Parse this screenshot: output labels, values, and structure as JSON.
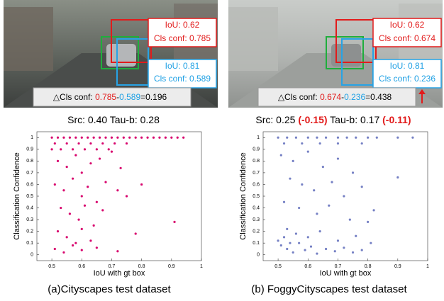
{
  "photos": [
    {
      "red_iou": "IoU: 0.62",
      "red_conf": "Cls conf: 0.785",
      "blue_iou": "IoU: 0.81",
      "blue_conf": "Cls conf: 0.589",
      "delta": [
        "△Cls conf: ",
        "0.785",
        "-",
        "0.589",
        "=0.196"
      ]
    },
    {
      "red_iou": "IoU: 0.62",
      "red_conf": "Cls conf: 0.674",
      "blue_iou": "IoU: 0.81",
      "blue_conf": "Cls conf: 0.236",
      "delta": [
        "△Cls conf: ",
        "0.674",
        "-",
        "0.236",
        "=0.438"
      ]
    }
  ],
  "chart_data": [
    {
      "type": "scatter",
      "title_parts": [
        "Src: 0.40 Tau-b: 0.28"
      ],
      "caption": "(a)Cityscapes test dataset",
      "xlabel": "IoU with gt box",
      "ylabel": "Classification Confidence",
      "color": "#d8066e",
      "x": [
        0.5,
        0.52,
        0.54,
        0.56,
        0.58,
        0.6,
        0.62,
        0.64,
        0.66,
        0.68,
        0.7,
        0.72,
        0.74,
        0.76,
        0.78,
        0.8,
        0.82,
        0.84,
        0.86,
        0.88,
        0.9,
        0.92,
        0.94,
        0.51,
        0.55,
        0.59,
        0.63,
        0.67,
        0.71,
        0.75,
        0.5,
        0.53,
        0.57,
        0.61,
        0.65,
        0.69,
        0.52,
        0.55,
        0.58,
        0.6,
        0.63,
        0.66,
        0.7,
        0.73,
        0.51,
        0.54,
        0.57,
        0.6,
        0.62,
        0.65,
        0.68,
        0.72,
        0.53,
        0.56,
        0.59,
        0.61,
        0.64,
        0.67,
        0.52,
        0.55,
        0.58,
        0.6,
        0.63,
        0.51,
        0.54,
        0.57,
        0.6,
        0.65,
        0.72,
        0.78,
        0.91,
        0.75,
        0.8
      ],
      "values": [
        1,
        1,
        1,
        1,
        1,
        1,
        1,
        1,
        1,
        1,
        1,
        1,
        1,
        1,
        1,
        1,
        1,
        1,
        1,
        1,
        1,
        1,
        1,
        0.95,
        0.95,
        0.95,
        0.95,
        0.95,
        0.95,
        0.95,
        0.9,
        0.9,
        0.9,
        0.9,
        0.9,
        0.9,
        0.8,
        0.75,
        0.85,
        0.7,
        0.78,
        0.82,
        0.88,
        0.74,
        0.6,
        0.55,
        0.65,
        0.5,
        0.58,
        0.45,
        0.62,
        0.55,
        0.4,
        0.35,
        0.3,
        0.42,
        0.25,
        0.38,
        0.2,
        0.15,
        0.1,
        0.22,
        0.12,
        0.05,
        0.02,
        0.08,
        0.04,
        0.06,
        0.03,
        0.18,
        0.28,
        0.5,
        0.6
      ],
      "xlim": [
        0.45,
        1
      ],
      "ylim": [
        -0.05,
        1.05
      ],
      "xticks": [
        0.5,
        0.6,
        0.7,
        0.8,
        0.9,
        1
      ],
      "yticks": [
        0,
        0.1,
        0.2,
        0.3,
        0.4,
        0.5,
        0.6,
        0.7,
        0.8,
        0.9,
        1
      ]
    },
    {
      "type": "scatter",
      "title_parts": [
        "Src: 0.25 ",
        "(-0.15)",
        " Tau-b: 0.17 ",
        "(-0.11)"
      ],
      "caption": "(b) FoggyCityscapes test dataset",
      "xlabel": "IoU with gt box",
      "ylabel": "Classification Confidence",
      "color": "#7580c4",
      "x": [
        0.5,
        0.53,
        0.56,
        0.6,
        0.63,
        0.66,
        0.7,
        0.73,
        0.76,
        0.8,
        0.83,
        0.9,
        0.95,
        0.52,
        0.58,
        0.64,
        0.7,
        0.78,
        0.51,
        0.55,
        0.6,
        0.65,
        0.7,
        0.75,
        0.54,
        0.58,
        0.62,
        0.68,
        0.72,
        0.78,
        0.9,
        0.52,
        0.57,
        0.63,
        0.67,
        0.74,
        0.82,
        0.8,
        0.53,
        0.56,
        0.6,
        0.64,
        0.7,
        0.76,
        0.81,
        0.51,
        0.53,
        0.55,
        0.57,
        0.59,
        0.61,
        0.63,
        0.66,
        0.69,
        0.72,
        0.75,
        0.78,
        0.5,
        0.52,
        0.54
      ],
      "values": [
        1,
        1,
        1,
        1,
        1,
        1,
        1,
        1,
        1,
        1,
        1,
        1,
        1,
        0.95,
        0.95,
        0.95,
        0.95,
        0.95,
        0.85,
        0.8,
        0.88,
        0.75,
        0.82,
        0.7,
        0.65,
        0.6,
        0.55,
        0.62,
        0.5,
        0.58,
        0.66,
        0.45,
        0.4,
        0.35,
        0.42,
        0.3,
        0.38,
        0.28,
        0.22,
        0.18,
        0.15,
        0.2,
        0.12,
        0.16,
        0.1,
        0.08,
        0.05,
        0.02,
        0.1,
        0.04,
        0.07,
        0.01,
        0.05,
        0.03,
        0.06,
        0.02,
        0.04,
        0.12,
        0.15,
        0.1
      ],
      "xlim": [
        0.45,
        1
      ],
      "ylim": [
        -0.05,
        1.05
      ],
      "xticks": [
        0.5,
        0.6,
        0.7,
        0.8,
        0.9,
        1
      ],
      "yticks": [
        0,
        0.1,
        0.2,
        0.3,
        0.4,
        0.5,
        0.6,
        0.7,
        0.8,
        0.9,
        1
      ]
    }
  ]
}
